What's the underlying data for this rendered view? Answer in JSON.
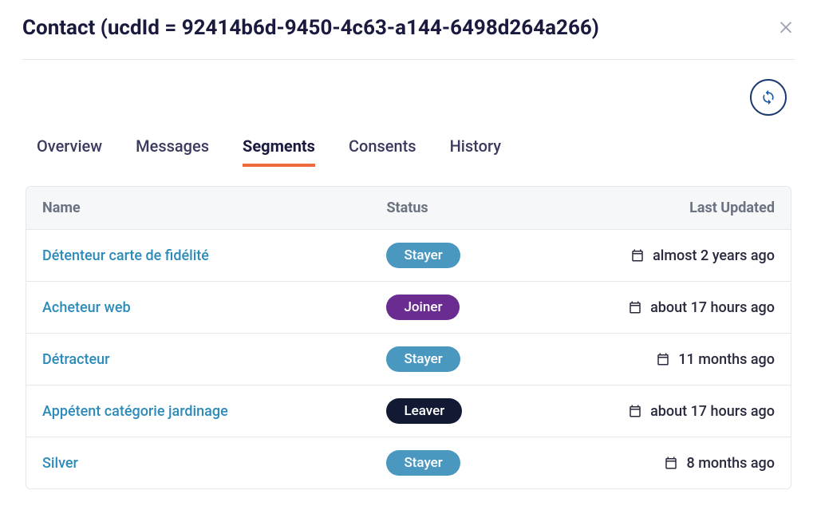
{
  "header": {
    "title": "Contact (ucdId = 92414b6d-9450-4c63-a144-6498d264a266)"
  },
  "tabs": [
    {
      "label": "Overview",
      "active": false
    },
    {
      "label": "Messages",
      "active": false
    },
    {
      "label": "Segments",
      "active": true
    },
    {
      "label": "Consents",
      "active": false
    },
    {
      "label": "History",
      "active": false
    }
  ],
  "table": {
    "columns": {
      "name": "Name",
      "status": "Status",
      "updated": "Last Updated"
    },
    "status_colors": {
      "Stayer": "#4a97bf",
      "Joiner": "#6a2c91",
      "Leaver": "#121a33"
    },
    "rows": [
      {
        "name": "Détenteur carte de fidélité",
        "status": "Stayer",
        "updated": "almost 2 years ago"
      },
      {
        "name": "Acheteur web",
        "status": "Joiner",
        "updated": "about 17 hours ago"
      },
      {
        "name": "Détracteur",
        "status": "Stayer",
        "updated": "11 months ago"
      },
      {
        "name": "Appétent catégorie jardinage",
        "status": "Leaver",
        "updated": "about 17 hours ago"
      },
      {
        "name": "Silver",
        "status": "Stayer",
        "updated": "8 months ago"
      }
    ]
  },
  "colors": {
    "title": "#1a1a3e",
    "tab_active_underline": "#ec6a3b",
    "link": "#2d8bba",
    "header_text": "#6b7280",
    "border": "#e5e7eb",
    "thead_bg": "#f6f7f9"
  }
}
